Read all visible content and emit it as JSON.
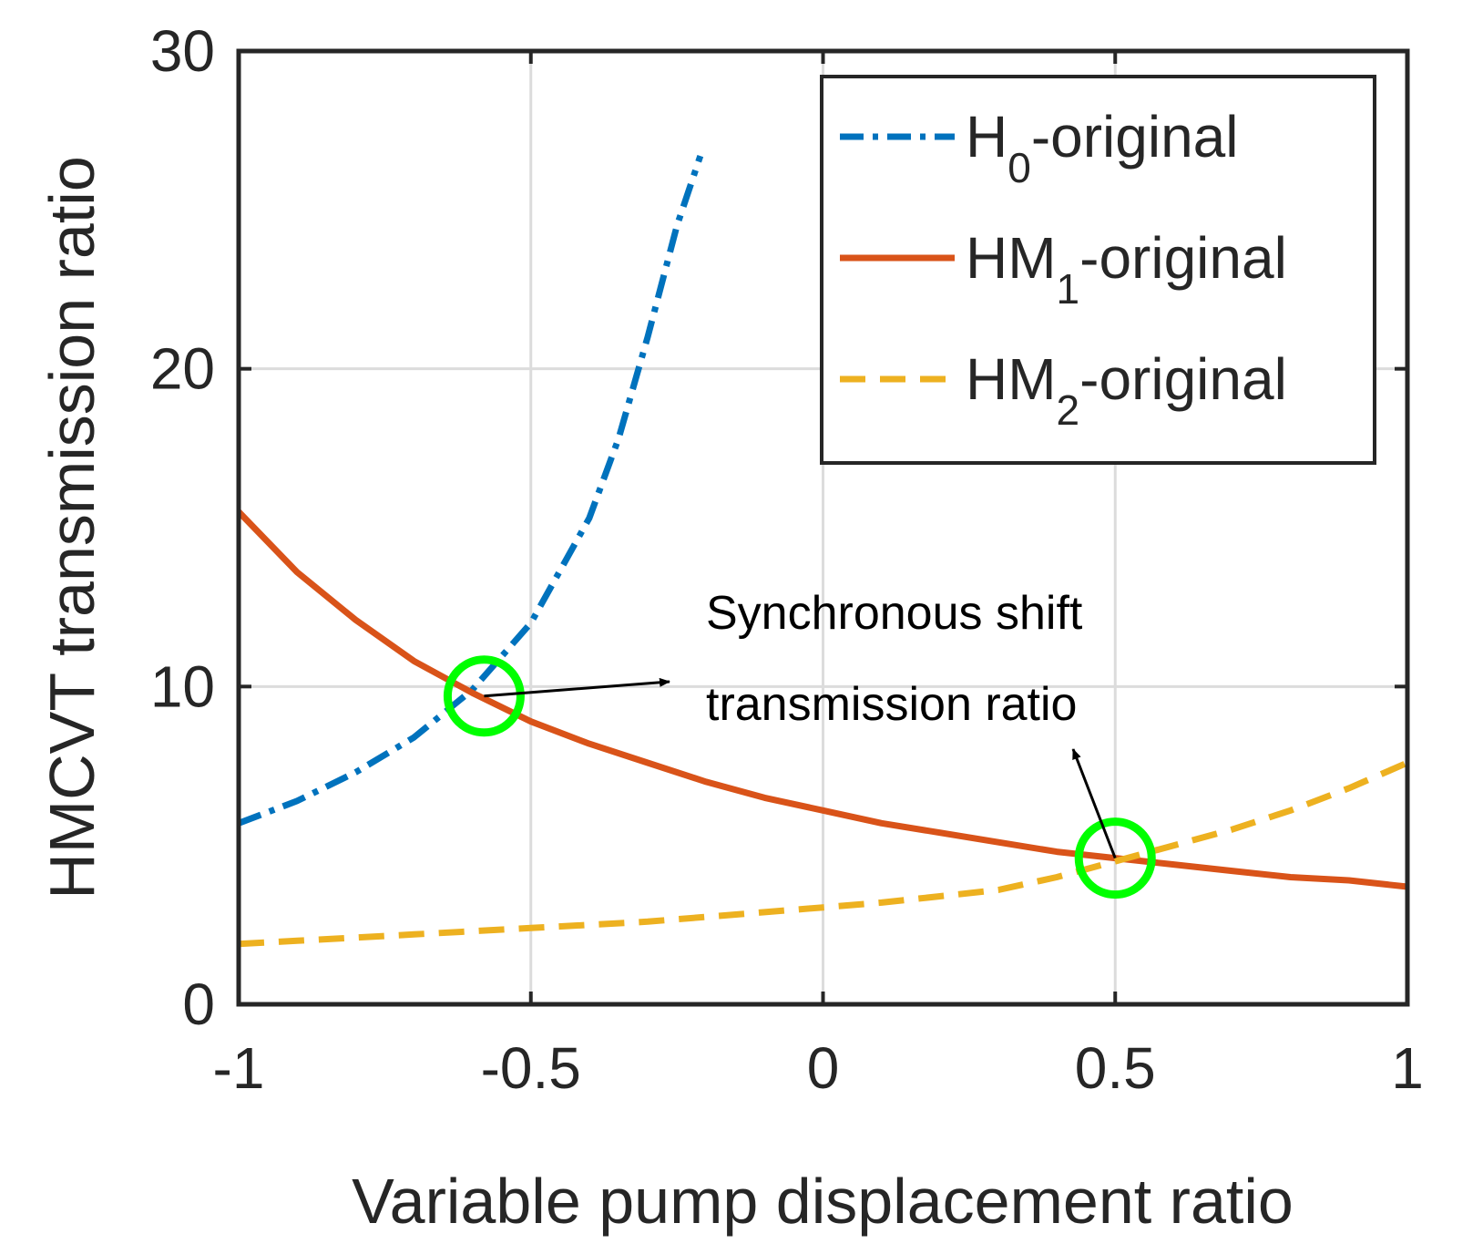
{
  "chart_data": {
    "type": "line",
    "xlabel": "Variable pump displacement ratio",
    "ylabel": "HMCVT transmission ratio",
    "xlim": [
      -1,
      1
    ],
    "ylim": [
      0,
      30
    ],
    "xticks": [
      -1,
      -0.5,
      0,
      0.5,
      1
    ],
    "xtick_labels": [
      "-1",
      "-0.5",
      "0",
      "0.5",
      "1"
    ],
    "yticks": [
      0,
      10,
      20,
      30
    ],
    "ytick_labels": [
      "0",
      "10",
      "20",
      "30"
    ],
    "grid": true,
    "legend_position": "top-right",
    "series": [
      {
        "name": "H0-original",
        "legend_main": "H",
        "legend_sub": "0",
        "legend_suffix": "-original",
        "color": "#0072BD",
        "style": "dash-dot",
        "x": [
          -1,
          -0.9,
          -0.8,
          -0.7,
          -0.6,
          -0.5,
          -0.4,
          -0.35,
          -0.3,
          -0.25,
          -0.21
        ],
        "y": [
          5.7,
          6.4,
          7.3,
          8.4,
          9.9,
          12.0,
          15.3,
          17.8,
          21.0,
          24.5,
          26.7
        ]
      },
      {
        "name": "HM1-original",
        "legend_main": "HM",
        "legend_sub": "1",
        "legend_suffix": "-original",
        "color": "#D95319",
        "style": "solid",
        "x": [
          -1,
          -0.9,
          -0.8,
          -0.7,
          -0.6,
          -0.5,
          -0.4,
          -0.3,
          -0.2,
          -0.1,
          0,
          0.1,
          0.2,
          0.3,
          0.4,
          0.5,
          0.6,
          0.7,
          0.8,
          0.9,
          1
        ],
        "y": [
          15.5,
          13.6,
          12.1,
          10.8,
          9.8,
          8.9,
          8.2,
          7.6,
          7.0,
          6.5,
          6.1,
          5.7,
          5.4,
          5.1,
          4.8,
          4.6,
          4.4,
          4.2,
          4.0,
          3.9,
          3.7
        ]
      },
      {
        "name": "HM2-original",
        "legend_main": "HM",
        "legend_sub": "2",
        "legend_suffix": "-original",
        "color": "#EDB120",
        "style": "dashed",
        "x": [
          -1,
          -0.9,
          -0.8,
          -0.7,
          -0.6,
          -0.5,
          -0.4,
          -0.3,
          -0.2,
          -0.1,
          0,
          0.1,
          0.2,
          0.3,
          0.4,
          0.5,
          0.6,
          0.7,
          0.8,
          0.9,
          1
        ],
        "y": [
          1.9,
          2.0,
          2.1,
          2.2,
          2.3,
          2.4,
          2.5,
          2.6,
          2.75,
          2.9,
          3.05,
          3.2,
          3.4,
          3.6,
          4.0,
          4.5,
          5.0,
          5.5,
          6.1,
          6.8,
          7.6
        ]
      }
    ],
    "markers": [
      {
        "name": "intersection-1",
        "x": -0.58,
        "y": 9.7,
        "color": "#00FF00"
      },
      {
        "name": "intersection-2",
        "x": 0.5,
        "y": 4.6,
        "color": "#00FF00"
      }
    ],
    "annotation": {
      "line1": "Synchronous shift",
      "line2": "transmission ratio"
    }
  }
}
